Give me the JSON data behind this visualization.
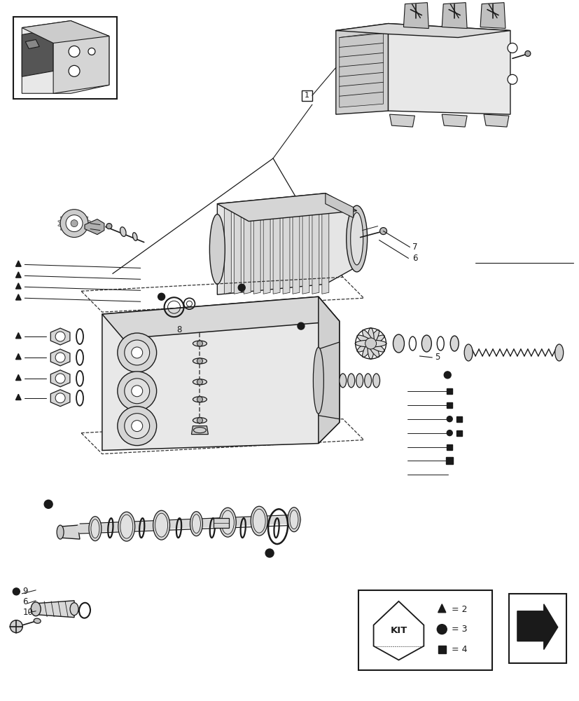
{
  "bg_color": "#ffffff",
  "fig_width": 8.28,
  "fig_height": 10.0,
  "dpi": 100
}
